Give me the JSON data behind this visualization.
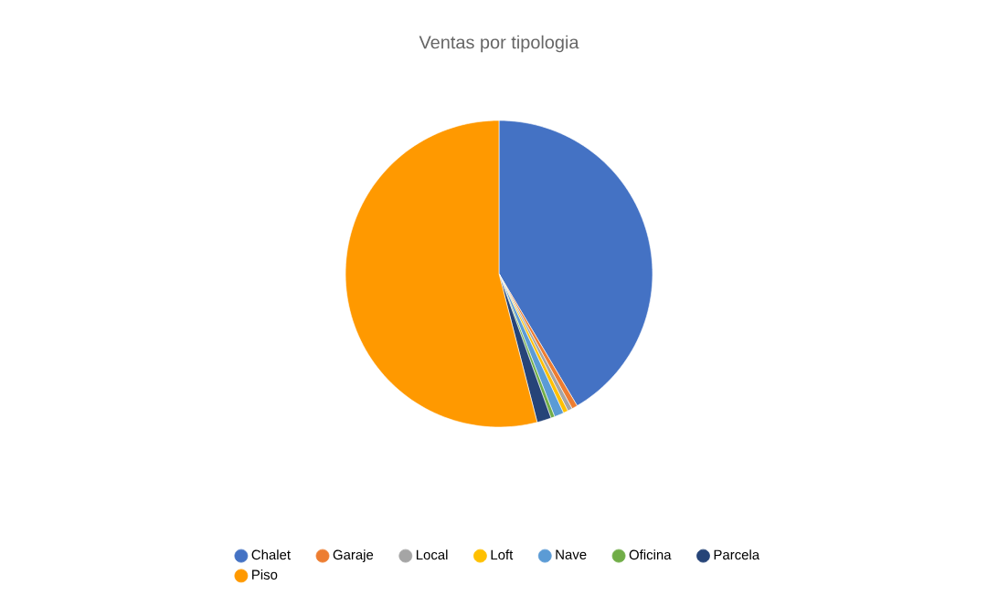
{
  "chart_data": {
    "type": "pie",
    "title": "Ventas por tipologia",
    "categories": [
      "Chalet",
      "Garaje",
      "Local",
      "Loft",
      "Nave",
      "Oficina",
      "Parcela",
      "Piso"
    ],
    "values": [
      41.5,
      0.6,
      0.5,
      0.5,
      1,
      0.4,
      1.5,
      54
    ],
    "colors": [
      "#4472c4",
      "#ed7d31",
      "#a5a5a5",
      "#ffc000",
      "#5b9bd5",
      "#70ad47",
      "#264478",
      "#ff9900"
    ],
    "legend": "bottom"
  }
}
